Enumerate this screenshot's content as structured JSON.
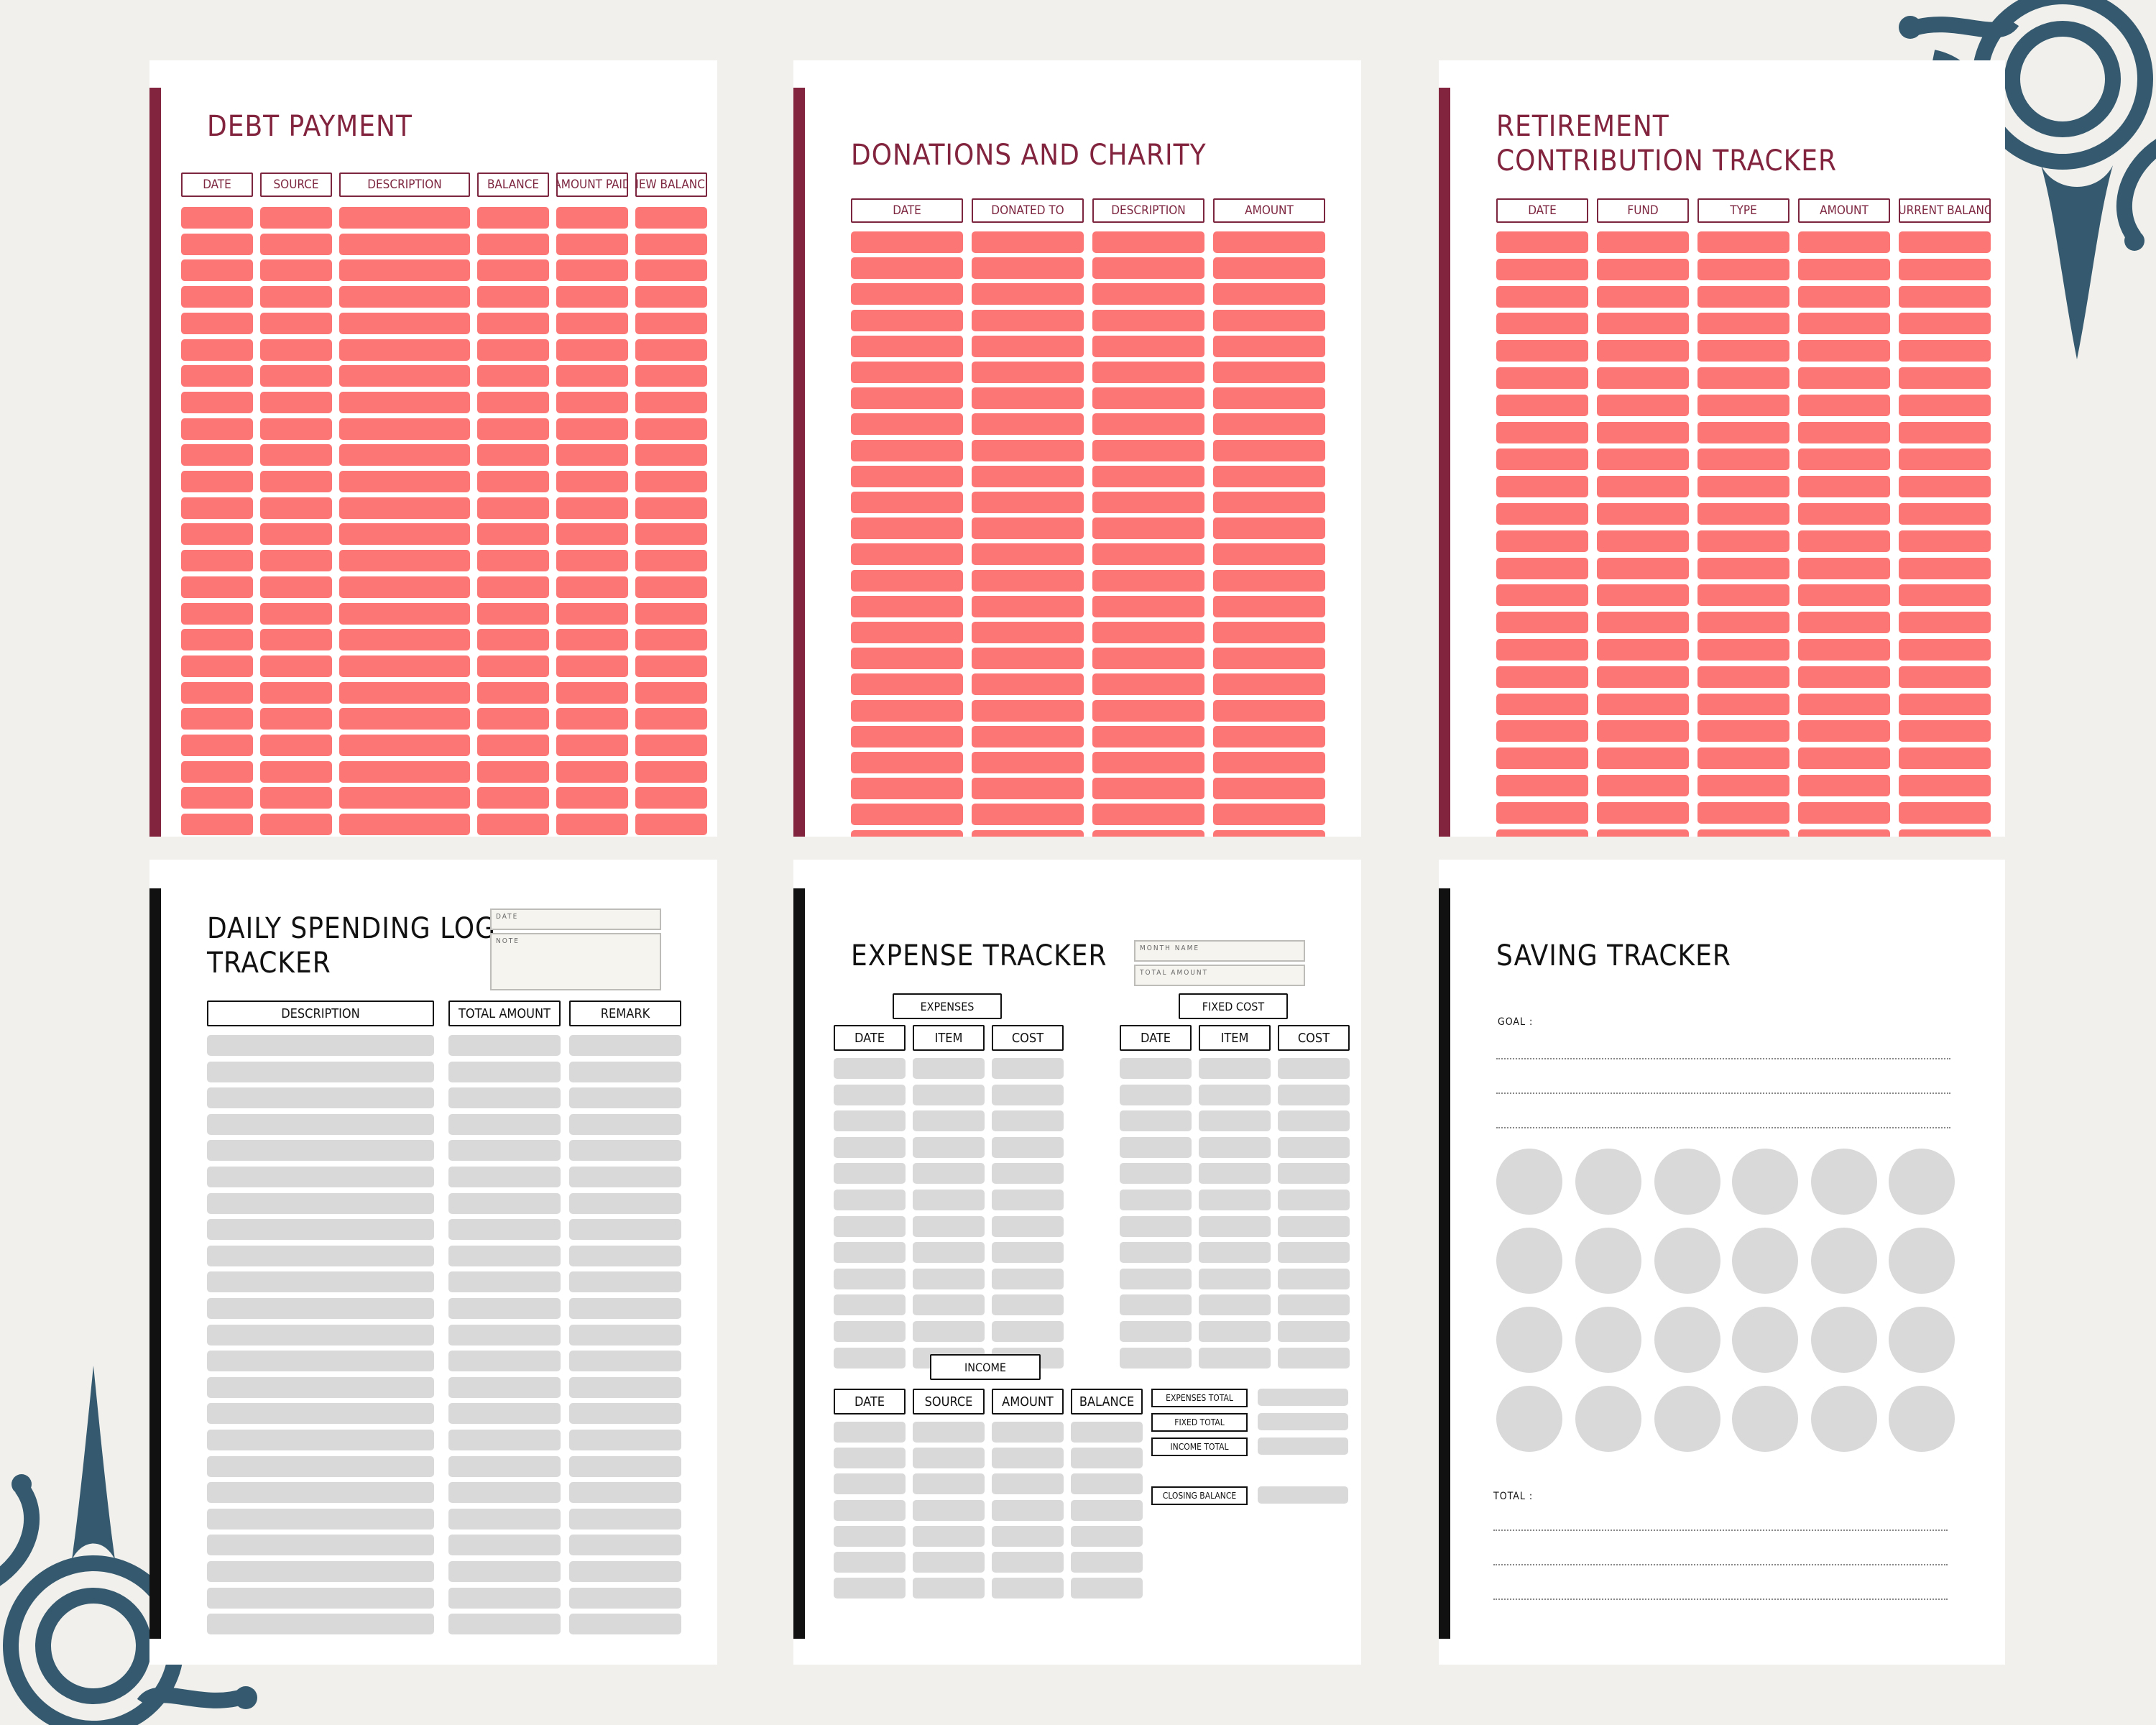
{
  "colors": {
    "background": "#f1f0ec",
    "maroon": "#83243f",
    "salmon_cells": "#fd7676",
    "gray_cells": "#d9d9d9",
    "ornament": "#355a6f"
  },
  "pages": {
    "debt_payment": {
      "title": "DEBT PAYMENT",
      "columns": [
        "DATE",
        "SOURCE",
        "DESCRIPTION",
        "BALANCE",
        "AMOUNT PAID",
        "NEW BALANCE"
      ]
    },
    "donations": {
      "title": "DONATIONS AND CHARITY",
      "columns": [
        "DATE",
        "DONATED TO",
        "DESCRIPTION",
        "AMOUNT"
      ]
    },
    "retirement": {
      "title": "RETIREMENT\nCONTRIBUTION TRACKER",
      "columns": [
        "DATE",
        "FUND",
        "TYPE",
        "AMOUNT",
        "CURRENT BALANCE"
      ]
    },
    "daily_spending": {
      "title": "DAILY SPENDING LOG\nTRACKER",
      "date_label": "DATE",
      "note_label": "NOTE",
      "columns": [
        "DESCRIPTION",
        "TOTAL AMOUNT",
        "REMARK"
      ]
    },
    "expense_tracker": {
      "title": "EXPENSE TRACKER",
      "month_name_label": "MONTH NAME",
      "total_amount_label": "TOTAL AMOUNT",
      "expenses_label": "EXPENSES",
      "fixed_cost_label": "FIXED COST",
      "expenses_columns": [
        "DATE",
        "ITEM",
        "COST"
      ],
      "fixed_columns": [
        "DATE",
        "ITEM",
        "COST"
      ],
      "income_label": "INCOME",
      "income_columns": [
        "DATE",
        "SOURCE",
        "AMOUNT",
        "BALANCE"
      ],
      "summary_labels": [
        "EXPENSES TOTAL",
        "FIXED TOTAL",
        "INCOME TOTAL",
        "CLOSING BALANCE"
      ]
    },
    "saving_tracker": {
      "title": "SAVING TRACKER",
      "goal_label": "GOAL :",
      "total_label": "TOTAL :",
      "circles": 24
    }
  }
}
